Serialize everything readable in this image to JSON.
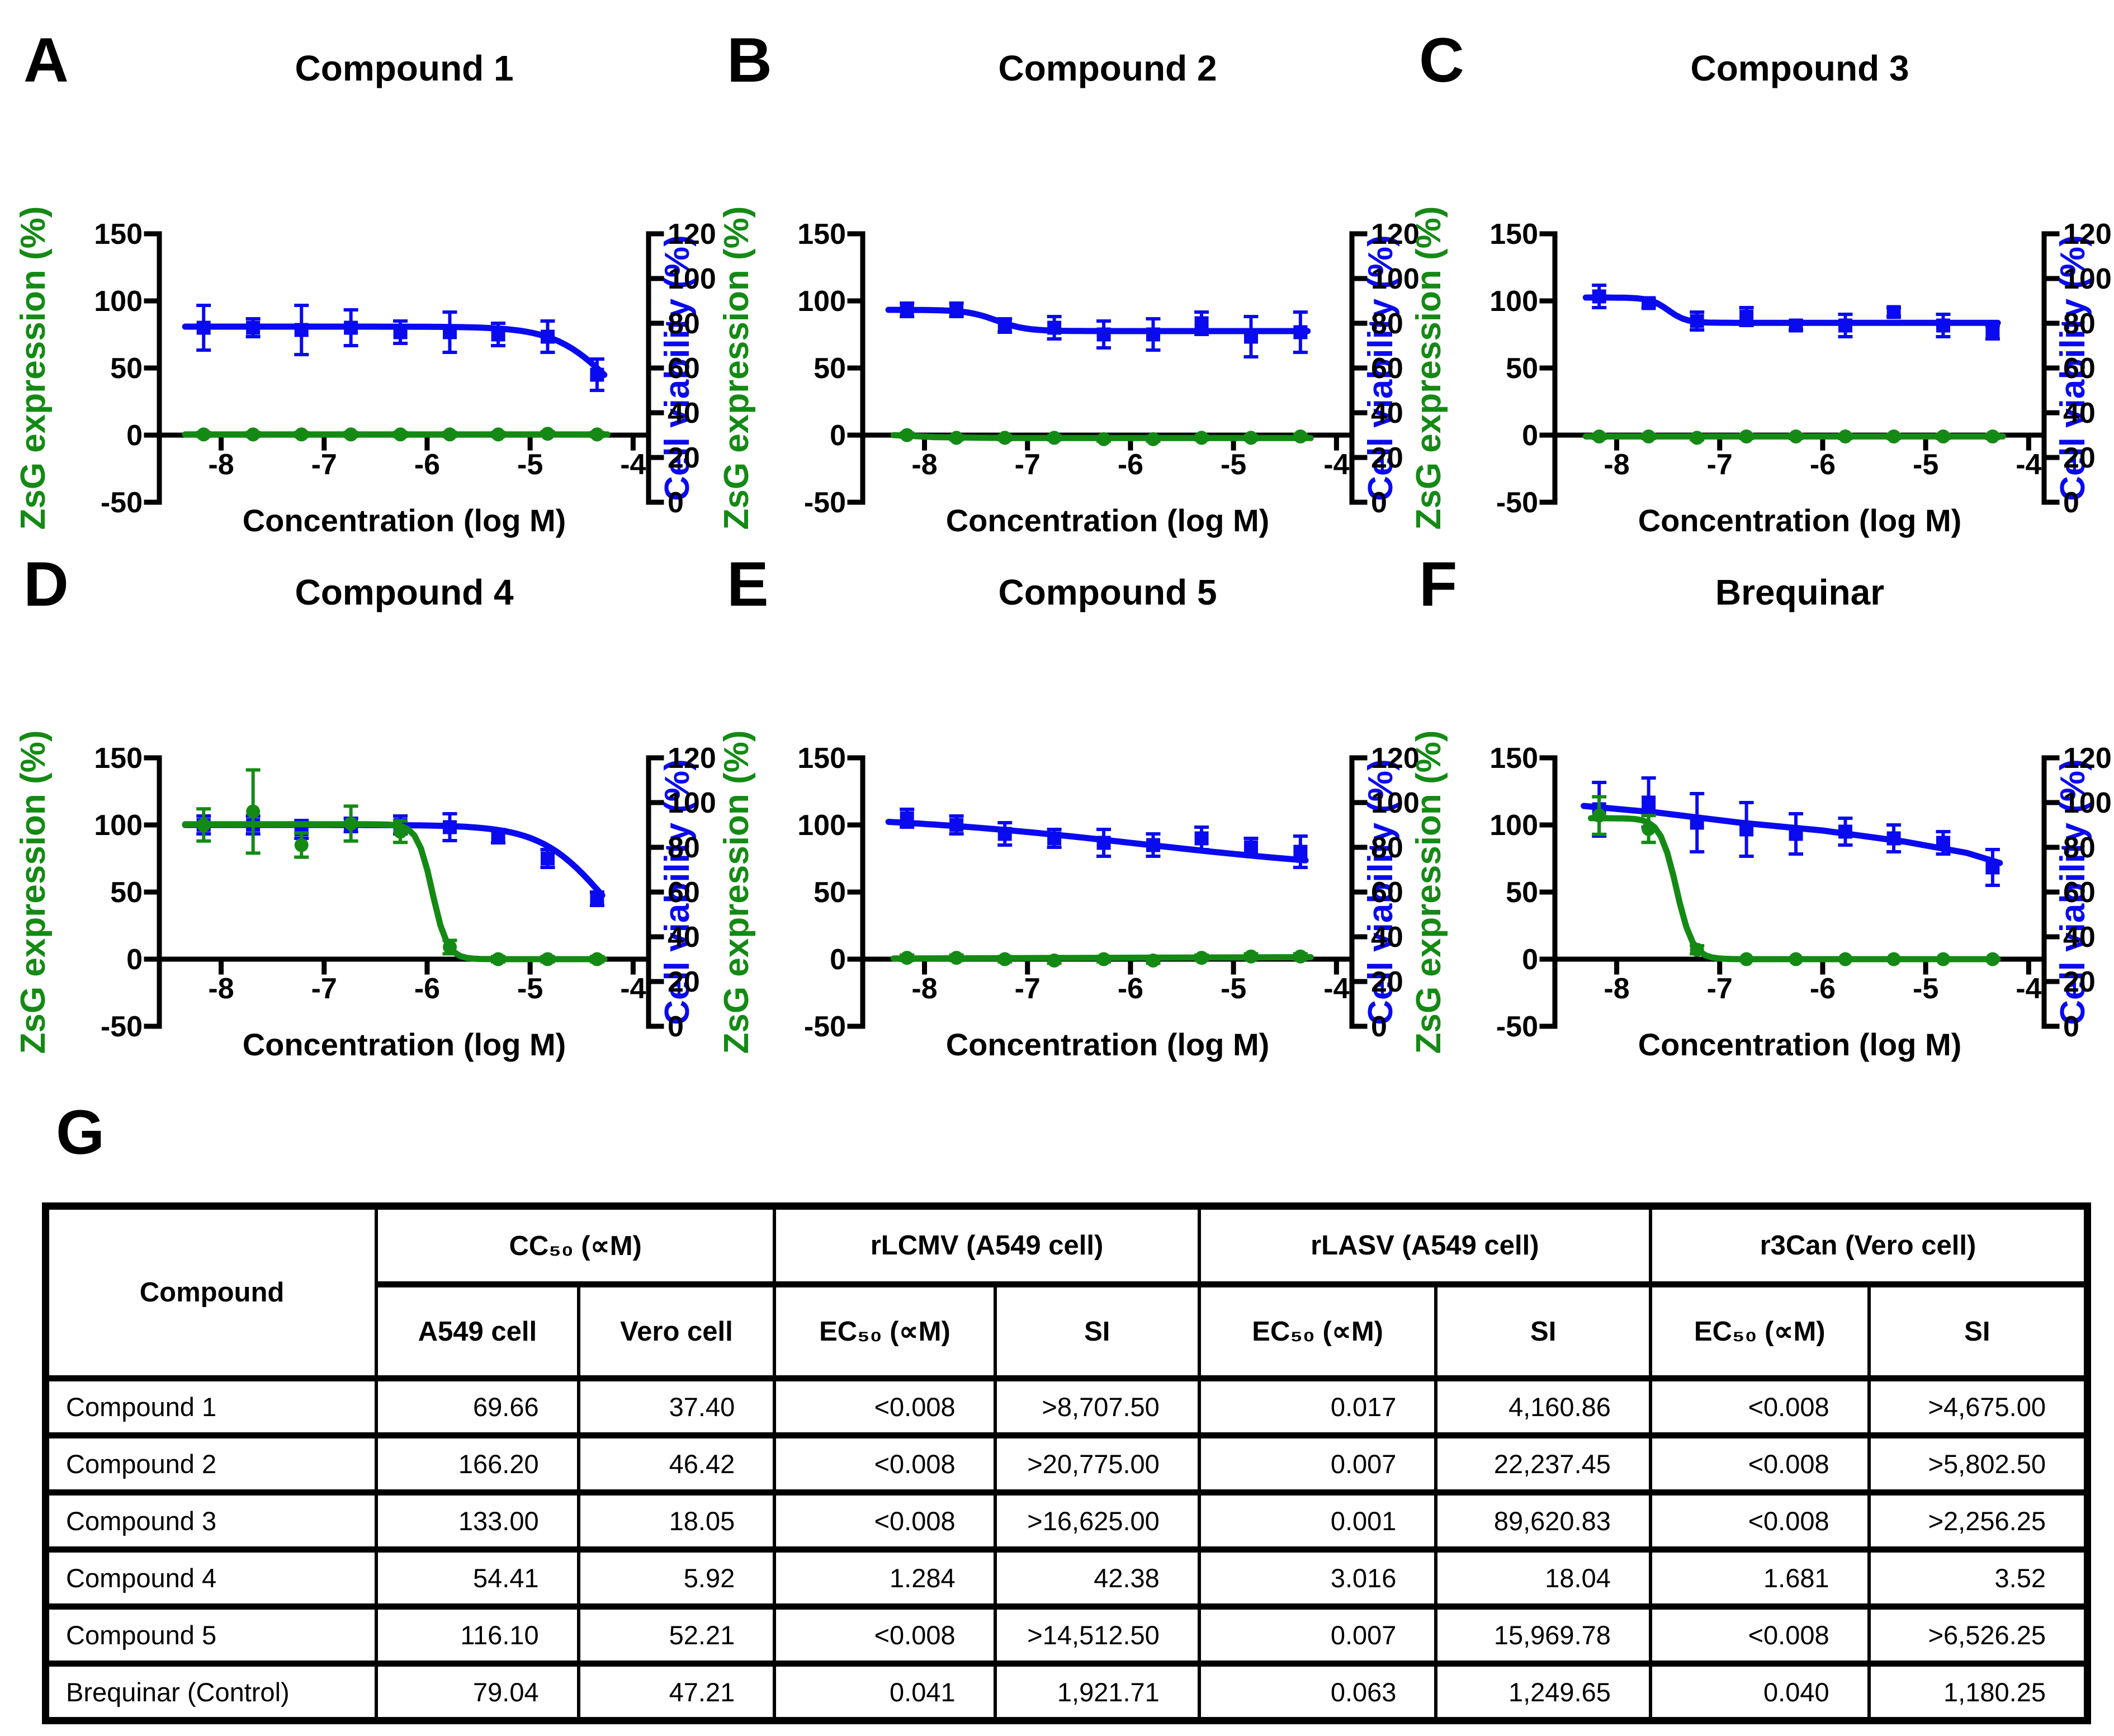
{
  "section_g_label": "G",
  "colors": {
    "zsg_green": "#148a14",
    "viability_blue": "#0a0af0",
    "axis_black": "#000000"
  },
  "chart_data": {
    "type": "line",
    "description": "Dose-response curves: ZsG expression (green, left axis) and cell viability (blue, right axis) vs compound concentration; plus antiviral activity summary table",
    "axes": {
      "left_label": "ZsG expression (%)",
      "right_label": "Cell viability (%)",
      "x_label": "Concentration (log M)",
      "left_ticks": [
        150,
        100,
        50,
        0,
        -50
      ],
      "right_ticks": [
        120,
        100,
        80,
        60,
        40,
        20,
        0
      ],
      "x_ticks": [
        -8,
        -7,
        -6,
        -5,
        -4
      ],
      "left_range": [
        -50,
        150
      ],
      "right_range": [
        0,
        120
      ],
      "x_range": [
        -8.6,
        -3.85
      ],
      "grid": false,
      "legend": "none"
    },
    "x_values": [
      -8.17,
      -7.69,
      -7.22,
      -6.74,
      -6.26,
      -5.78,
      -5.31,
      -4.83,
      -4.35
    ],
    "panels": [
      {
        "letter": "A",
        "title": "Compound 1",
        "zsg": {
          "values": [
            0.5,
            0.5,
            0.5,
            0.5,
            0.5,
            0.5,
            0.5,
            1,
            0.5
          ],
          "errors": [
            1.5,
            1.5,
            1.5,
            1.5,
            1.5,
            1.5,
            1.5,
            1.5,
            1.5
          ],
          "curve_points": [
            [
              -8.35,
              0.5
            ],
            [
              -4.25,
              0.5
            ]
          ]
        },
        "viability": {
          "values": [
            78,
            78,
            77,
            78,
            76,
            76,
            75,
            74,
            57
          ],
          "errors": [
            10,
            4,
            11,
            8,
            5,
            9,
            5,
            7,
            7
          ],
          "fit": {
            "top": 78.5,
            "bottom": 30,
            "ec50": -4.22,
            "hill": 1.6
          },
          "fit_range": [
            -8.35,
            -4.28
          ]
        }
      },
      {
        "letter": "B",
        "title": "Compound 2",
        "zsg": {
          "values": [
            0,
            -2,
            -2,
            -2,
            -3,
            -3,
            -2,
            -2,
            -1
          ],
          "errors": [
            1.5,
            1.5,
            1.5,
            1.5,
            1.5,
            1.5,
            1.5,
            1.5,
            1.5
          ],
          "curve_points": [
            [
              -8.3,
              0
            ],
            [
              -7.9,
              -1.5
            ],
            [
              -7.2,
              -2.2
            ],
            [
              -4.25,
              -2.2
            ]
          ]
        },
        "viability": {
          "values": [
            86,
            86,
            79,
            78,
            75,
            75,
            80,
            74,
            76
          ],
          "errors": [
            3,
            3,
            3,
            5,
            6,
            7,
            5,
            9,
            9
          ],
          "fit": {
            "top": 86,
            "bottom": 76.5,
            "ec50": -7.3,
            "hill": 3
          },
          "fit_range": [
            -8.35,
            -4.28
          ]
        }
      },
      {
        "letter": "C",
        "title": "Compound 3",
        "zsg": {
          "values": [
            -1,
            -1,
            -2,
            -1,
            -1,
            -1,
            -1,
            -1,
            -1
          ],
          "errors": [
            1.5,
            1.5,
            1.5,
            1.5,
            1.5,
            1.5,
            1.5,
            1.5,
            1.5
          ],
          "curve_points": [
            [
              -8.3,
              -1
            ],
            [
              -4.25,
              -1
            ]
          ]
        },
        "viability": {
          "values": [
            92,
            89,
            81,
            83,
            79,
            79,
            85,
            79,
            76
          ],
          "errors": [
            5,
            2,
            4,
            4,
            2,
            5,
            2,
            5,
            3
          ],
          "fit": {
            "top": 91.5,
            "bottom": 80.2,
            "ec50": -7.5,
            "hill": 5
          },
          "fit_range": [
            -8.3,
            -4.3
          ]
        }
      },
      {
        "letter": "D",
        "title": "Compound 4",
        "zsg": {
          "values": [
            100,
            110,
            85,
            101,
            95,
            9,
            0,
            0,
            0
          ],
          "errors": [
            12,
            31,
            9,
            13,
            8,
            5,
            2,
            2,
            2
          ],
          "fit": {
            "top": 100.5,
            "bottom": 0,
            "ec50": -5.95,
            "hill": 6
          },
          "fit_range": [
            -8.35,
            -4.28
          ]
        },
        "viability": {
          "values": [
            90,
            90,
            88,
            90,
            90,
            89,
            85,
            75,
            57
          ],
          "errors": [
            4,
            4,
            4,
            3,
            4,
            6,
            3,
            4,
            3
          ],
          "fit": {
            "top": 90,
            "bottom": 25,
            "ec50": -4.28,
            "hill": 1.4
          },
          "fit_range": [
            -8.35,
            -4.3
          ]
        }
      },
      {
        "letter": "E",
        "title": "Compound 5",
        "zsg": {
          "values": [
            1,
            1,
            0,
            -1,
            0,
            -1,
            1,
            2,
            2
          ],
          "errors": [
            2,
            2,
            2,
            2,
            2,
            2,
            2,
            2,
            2
          ],
          "curve_points": [
            [
              -8.3,
              0.5
            ],
            [
              -4.25,
              1.5
            ]
          ]
        },
        "viability": {
          "values": [
            93,
            90,
            86,
            84,
            82,
            81,
            84,
            80,
            78
          ],
          "errors": [
            4,
            4,
            5,
            4,
            6,
            5,
            5,
            4,
            7
          ],
          "fit": {
            "top": 95,
            "bottom": 68,
            "ec50": -5.9,
            "hill": 0.33
          },
          "fit_range": [
            -8.35,
            -4.3
          ]
        }
      },
      {
        "letter": "F",
        "title": "Brequinar",
        "zsg": {
          "values": [
            107,
            97,
            7,
            0,
            0,
            0,
            0,
            0,
            0
          ],
          "errors": [
            14,
            10,
            3,
            1,
            1,
            1,
            1,
            1,
            1
          ],
          "fit": {
            "top": 105,
            "bottom": 0,
            "ec50": -7.42,
            "hill": 5.5
          },
          "fit_range": [
            -8.25,
            -4.3
          ]
        },
        "viability": {
          "values": [
            97,
            100,
            91,
            88,
            86,
            87,
            84,
            82,
            71
          ],
          "errors": [
            12,
            11,
            13,
            12,
            9,
            6,
            6,
            5,
            8
          ],
          "curve_points": [
            [
              -8.32,
              98.5
            ],
            [
              -7.6,
              95.5
            ],
            [
              -6.8,
              91
            ],
            [
              -6.0,
              87.5
            ],
            [
              -5.2,
              82.5
            ],
            [
              -4.6,
              77.5
            ],
            [
              -4.28,
              73
            ]
          ]
        }
      }
    ],
    "table": {
      "corner_header": "Compound",
      "groups": [
        {
          "label": "CC₅₀ (∝M)",
          "sub": [
            "A549 cell",
            "Vero cell"
          ]
        },
        {
          "label": "rLCMV (A549 cell)",
          "sub": [
            "EC₅₀ (∝M)",
            "SI"
          ]
        },
        {
          "label": "rLASV (A549 cell)",
          "sub": [
            "EC₅₀ (∝M)",
            "SI"
          ]
        },
        {
          "label": "r3Can (Vero cell)",
          "sub": [
            "EC₅₀ (∝M)",
            "SI"
          ]
        }
      ],
      "col_widths_pct": [
        16.2,
        9.9,
        9.6,
        10.8,
        10.0,
        11.6,
        10.5,
        10.7,
        10.7
      ],
      "rows": [
        {
          "name": "Compound 1",
          "values": [
            "69.66",
            "37.40",
            "<0.008",
            ">8,707.50",
            "0.017",
            "4,160.86",
            "<0.008",
            ">4,675.00"
          ]
        },
        {
          "name": "Compound 2",
          "values": [
            "166.20",
            "46.42",
            "<0.008",
            ">20,775.00",
            "0.007",
            "22,237.45",
            "<0.008",
            ">5,802.50"
          ]
        },
        {
          "name": "Compound 3",
          "values": [
            "133.00",
            "18.05",
            "<0.008",
            ">16,625.00",
            "0.001",
            "89,620.83",
            "<0.008",
            ">2,256.25"
          ]
        },
        {
          "name": "Compound 4",
          "values": [
            "54.41",
            "5.92",
            "1.284",
            "42.38",
            "3.016",
            "18.04",
            "1.681",
            "3.52"
          ]
        },
        {
          "name": "Compound 5",
          "values": [
            "116.10",
            "52.21",
            "<0.008",
            ">14,512.50",
            "0.007",
            "15,969.78",
            "<0.008",
            ">6,526.25"
          ]
        },
        {
          "name": "Brequinar (Control)",
          "values": [
            "79.04",
            "47.21",
            "0.041",
            "1,921.71",
            "0.063",
            "1,249.65",
            "0.040",
            "1,180.25"
          ]
        }
      ]
    }
  }
}
